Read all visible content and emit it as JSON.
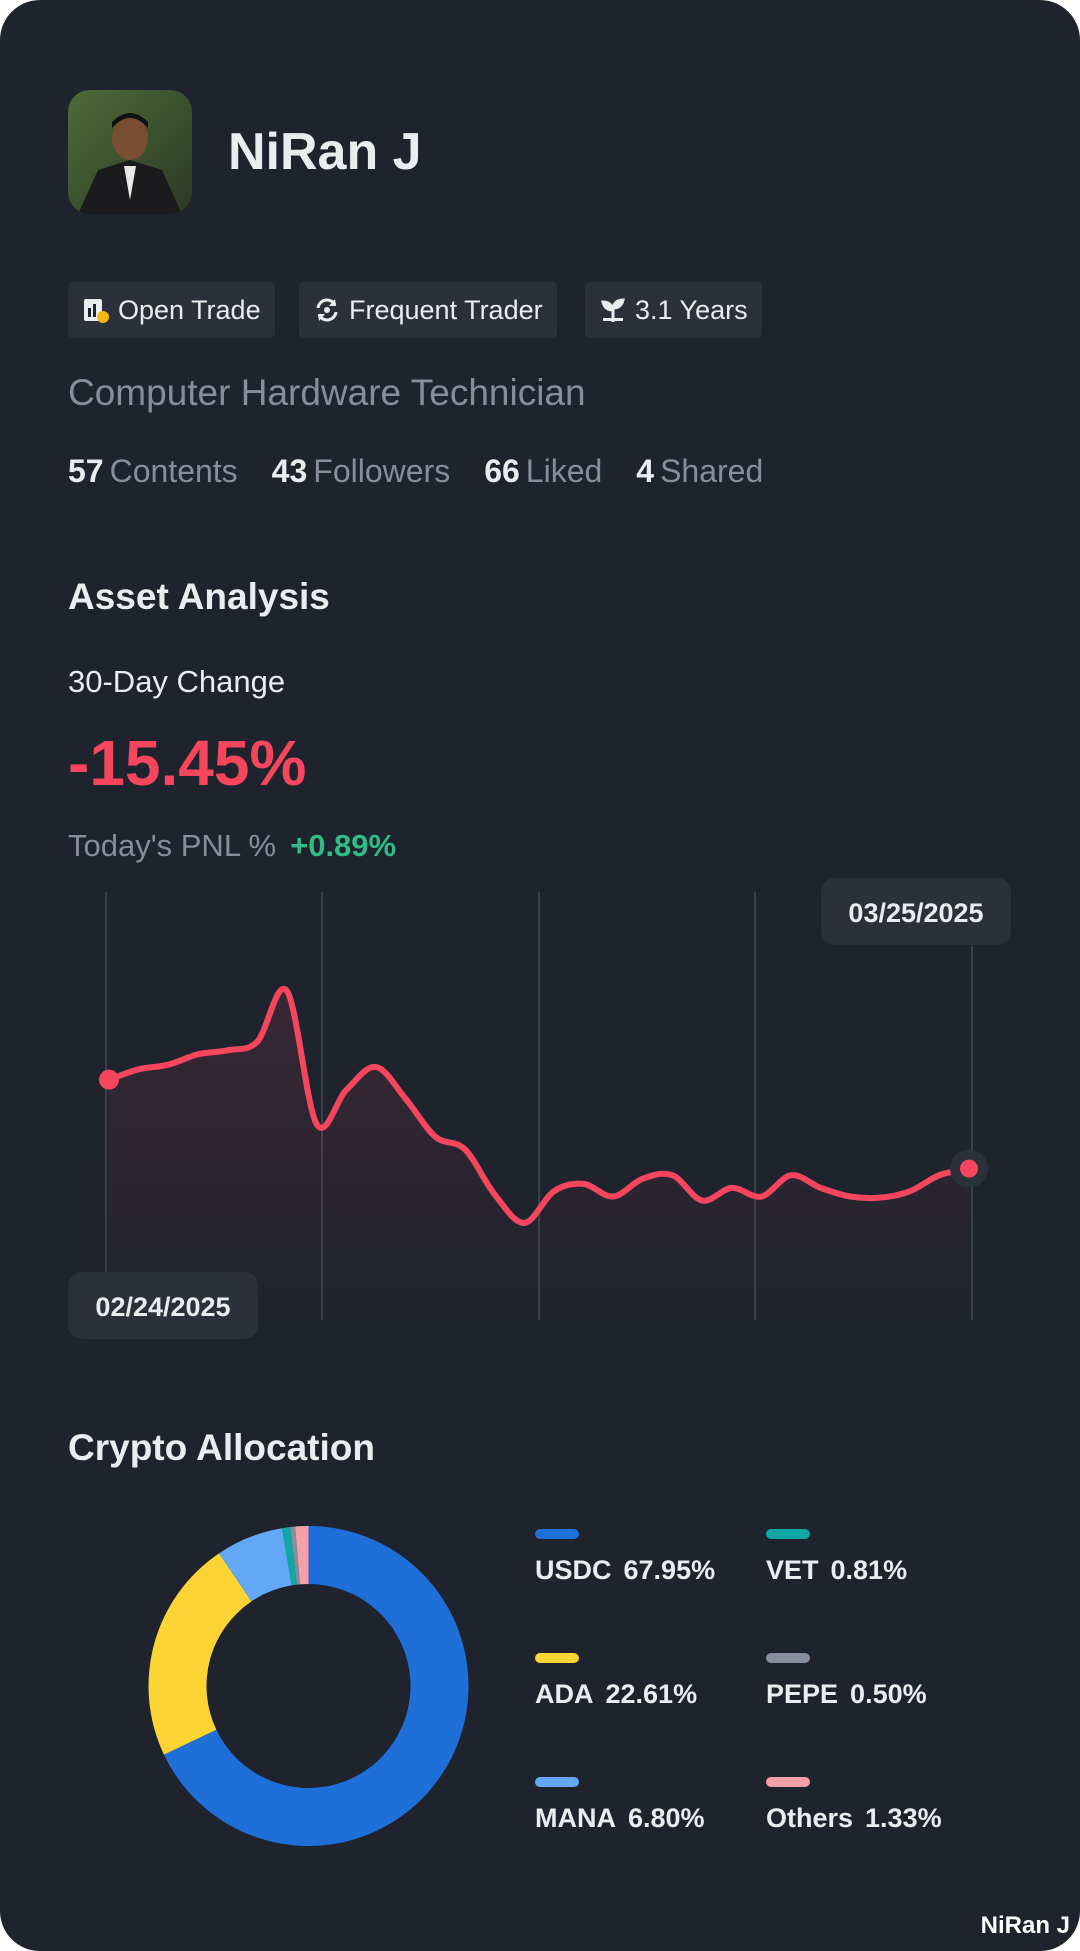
{
  "profile": {
    "name": "NiRan J",
    "badges": [
      "Open Trade",
      "Frequent Trader",
      "3.1 Years"
    ],
    "bio": "Computer Hardware Technician",
    "stats": [
      {
        "value": "57",
        "label": "Contents"
      },
      {
        "value": "43",
        "label": "Followers"
      },
      {
        "value": "66",
        "label": "Liked"
      },
      {
        "value": "4",
        "label": "Shared"
      }
    ]
  },
  "asset_analysis": {
    "title": "Asset Analysis",
    "change_label": "30-Day Change",
    "change": "-15.45%",
    "pnl_label": "Today's PNL %",
    "pnl": "+0.89%"
  },
  "chart_data": [
    {
      "type": "line",
      "color": "#f6465d",
      "categories": [
        "02/24/2025",
        null,
        null,
        null,
        null,
        null,
        null,
        null,
        null,
        null,
        null,
        null,
        null,
        null,
        null,
        null,
        null,
        null,
        null,
        null,
        null,
        null,
        null,
        null,
        null,
        null,
        null,
        null,
        null,
        "03/25/2025"
      ],
      "values": [
        0,
        1.8,
        2.6,
        4.4,
        5.1,
        6.6,
        15.4,
        -7.7,
        -1.8,
        2.2,
        -3.3,
        -9.9,
        -12.1,
        -19.9,
        -24.9,
        -19.4,
        -18.1,
        -20.3,
        -17.2,
        -16.6,
        -21.0,
        -18.8,
        -20.3,
        -16.6,
        -18.8,
        -20.3,
        -20.5,
        -19.4,
        -16.6,
        -15.45
      ]
    },
    {
      "type": "pie",
      "title": "Crypto Allocation",
      "categories": [
        "USDC",
        "ADA",
        "MANA",
        "VET",
        "PEPE",
        "Others"
      ],
      "values": [
        67.95,
        22.61,
        6.8,
        0.81,
        0.5,
        1.33
      ],
      "value_labels": [
        "67.95%",
        "22.61%",
        "6.80%",
        "0.81%",
        "0.50%",
        "1.33%"
      ],
      "colors": [
        "#1f6fd8",
        "#fcd535",
        "#62a8f5",
        "#0fa8a5",
        "#848e9c",
        "#f4a0a8"
      ]
    }
  ],
  "watermark": "NiRan J"
}
